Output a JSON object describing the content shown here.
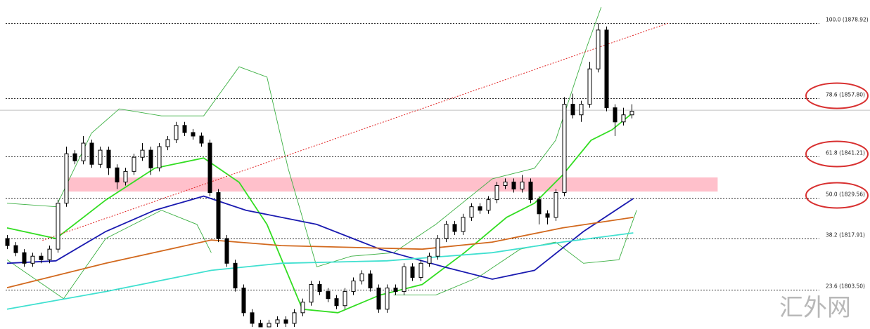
{
  "chart_data": {
    "type": "candlestick",
    "xlim": [
      -0.83,
      102.25
    ],
    "ylim": [
      1792.4,
      1885.5
    ],
    "open": [
      1818,
      1816,
      1814,
      1811,
      1813,
      1812,
      1815,
      1828,
      1842,
      1840,
      1845,
      1839,
      1843,
      1838,
      1834,
      1837,
      1841,
      1843,
      1838,
      1844,
      1846,
      1850,
      1848,
      1847,
      1845,
      1831,
      1818,
      1811,
      1804,
      1797,
      1794,
      1793,
      1794,
      1795,
      1794,
      1797,
      1800,
      1805,
      1803,
      1801,
      1799,
      1803,
      1806,
      1808,
      1804,
      1798,
      1804,
      1803,
      1810,
      1807,
      1811,
      1813,
      1818,
      1822,
      1820,
      1824,
      1827,
      1826,
      1829,
      1833,
      1834,
      1832,
      1834,
      1829,
      1825,
      1824,
      1831,
      1856,
      1853,
      1856,
      1866,
      1877,
      1855,
      1851,
      1853
    ],
    "high": [
      1819,
      1817,
      1815,
      1814,
      1814,
      1816,
      1829,
      1844,
      1843,
      1847,
      1846,
      1844,
      1844,
      1839,
      1838,
      1842,
      1845,
      1844,
      1845,
      1847,
      1851,
      1851,
      1849,
      1848,
      1846,
      1832,
      1819,
      1812,
      1805,
      1798,
      1795,
      1795,
      1796,
      1796,
      1798,
      1801,
      1806,
      1806,
      1804,
      1802,
      1804,
      1807,
      1809,
      1809,
      1805,
      1805,
      1805,
      1811,
      1811,
      1812,
      1814,
      1819,
      1823,
      1823,
      1825,
      1828,
      1828,
      1830,
      1834,
      1835,
      1835,
      1836,
      1835,
      1830,
      1826,
      1832,
      1858,
      1859,
      1857,
      1868,
      1878.9,
      1878,
      1856,
      1855,
      1856
    ],
    "low": [
      1815,
      1813,
      1810,
      1810,
      1811,
      1811,
      1814,
      1827,
      1839,
      1839,
      1838,
      1838,
      1836,
      1832,
      1833,
      1836,
      1840,
      1836,
      1837,
      1843,
      1845,
      1847,
      1846,
      1844,
      1830,
      1817,
      1810,
      1803,
      1796,
      1793,
      1793,
      1793,
      1793,
      1793,
      1793,
      1796,
      1799,
      1802,
      1800,
      1798,
      1798,
      1802,
      1805,
      1803,
      1797,
      1797,
      1802,
      1802,
      1806,
      1806,
      1810,
      1812,
      1817,
      1819,
      1819,
      1823,
      1825,
      1825,
      1828,
      1832,
      1831,
      1831,
      1828,
      1822,
      1822,
      1823,
      1830,
      1852,
      1851,
      1855,
      1865,
      1854,
      1847,
      1850,
      1852
    ],
    "close": [
      1816,
      1814,
      1811,
      1813,
      1812,
      1815,
      1828,
      1842,
      1840,
      1845,
      1839,
      1843,
      1838,
      1834,
      1837,
      1841,
      1843,
      1838,
      1844,
      1846,
      1850,
      1848,
      1847,
      1845,
      1831,
      1818,
      1811,
      1804,
      1797,
      1794,
      1793,
      1794,
      1795,
      1794,
      1797,
      1800,
      1805,
      1803,
      1801,
      1799,
      1803,
      1806,
      1808,
      1804,
      1798,
      1804,
      1803,
      1810,
      1807,
      1811,
      1813,
      1818,
      1822,
      1820,
      1824,
      1827,
      1826,
      1829,
      1833,
      1834,
      1832,
      1834,
      1829,
      1825,
      1824,
      1831,
      1856,
      1853,
      1856,
      1866,
      1877,
      1855,
      1851,
      1853,
      1854
    ],
    "up_color": "#ffffff",
    "down_color": "#000000",
    "moving_averages": [
      {
        "color": "#33dd22",
        "x": [
          0,
          5.8,
          11.7,
          17.5,
          23.3,
          27.5,
          30.8,
          35,
          39.2,
          44.2,
          49.2,
          54.2,
          59.2,
          62.5,
          65.8,
          69.2,
          71.7,
          74.2
        ],
        "values": [
          1821,
          1818,
          1828.9,
          1837.9,
          1840.8,
          1833.9,
          1822,
          1798,
          1797,
          1802,
          1805,
          1814,
          1824,
          1828,
          1835.9,
          1845.8,
          1848.8,
          1853.7
        ]
      },
      {
        "color": "#1a1ab0",
        "x": [
          0,
          5.8,
          11.7,
          17.5,
          23.3,
          28.3,
          36.7,
          44.2,
          51.7,
          57.5,
          62.5,
          68.3,
          74.2
        ],
        "values": [
          1811,
          1811.7,
          1820,
          1826,
          1830,
          1826,
          1822,
          1815,
          1810,
          1806.5,
          1809,
          1820,
          1829.3
        ]
      },
      {
        "color": "#d2691e",
        "x": [
          0,
          11.7,
          24.2,
          32.5,
          49.2,
          57.5,
          65.8,
          74.2
        ],
        "values": [
          1804.1,
          1811,
          1817.6,
          1816,
          1815,
          1817,
          1821,
          1824
        ]
      },
      {
        "color": "#40e0d0",
        "x": [
          0,
          11.7,
          24.2,
          32.5,
          45,
          57.5,
          65.8,
          74.2
        ],
        "values": [
          1798,
          1803,
          1809,
          1811,
          1811.7,
          1814,
          1817,
          1819.6
        ]
      }
    ],
    "bands": [
      {
        "color": "#3cb043",
        "x": [
          0,
          5.8,
          10,
          13.3,
          18.3,
          23.3,
          27.5,
          30.8,
          33.3,
          36.7,
          40.8,
          45.8,
          50.8,
          57.5,
          62.5,
          65,
          68.3,
          70.4
        ],
        "values": [
          1828,
          1827,
          1847.8,
          1854.7,
          1852.7,
          1852.7,
          1866.6,
          1863.7,
          1837.9,
          1810,
          1813,
          1814,
          1822,
          1834.9,
          1837.9,
          1845.8,
          1869.6,
          1883.5
        ]
      },
      {
        "color": "#3cb043",
        "x": [
          0,
          6.7,
          11.7,
          18.3,
          22.5,
          24.2,
          26.7,
          45.8,
          50.8,
          55.8,
          60.8,
          65,
          68.3,
          72.5,
          74.6
        ],
        "values": [
          1812,
          1801,
          1818,
          1826,
          1822,
          1814,
          null,
          1802,
          1802,
          1807,
          1815,
          1817,
          1811,
          1812,
          1826
        ]
      }
    ],
    "trendline": {
      "color": "#e02020",
      "x": [
        4.2,
        78.3
      ],
      "values": [
        1817.5,
        1878.9
      ]
    },
    "zone": {
      "color": "#ffc0cb",
      "x": [
        6.8,
        84.2
      ],
      "values": [
        1831.3,
        1835.3
      ]
    },
    "current_price": {
      "value": 1854.3,
      "color": "#c0c0c0"
    },
    "levels": [
      {
        "value": 1878.92,
        "label": "100.0 (1878.92)",
        "circled": false
      },
      {
        "value": 1857.8,
        "label": "78.6 (1857.80)",
        "circled": true
      },
      {
        "value": 1841.21,
        "label": "61.8 (1841.21)",
        "circled": true
      },
      {
        "value": 1829.56,
        "label": "50.0 (1829.56)",
        "circled": true
      },
      {
        "value": 1817.91,
        "label": "38.2 (1817.91)",
        "circled": false
      },
      {
        "value": 1803.5,
        "label": "23.6 (1803.50)",
        "circled": false
      }
    ],
    "circle_color": "#d83030",
    "watermark": "汇外网"
  }
}
